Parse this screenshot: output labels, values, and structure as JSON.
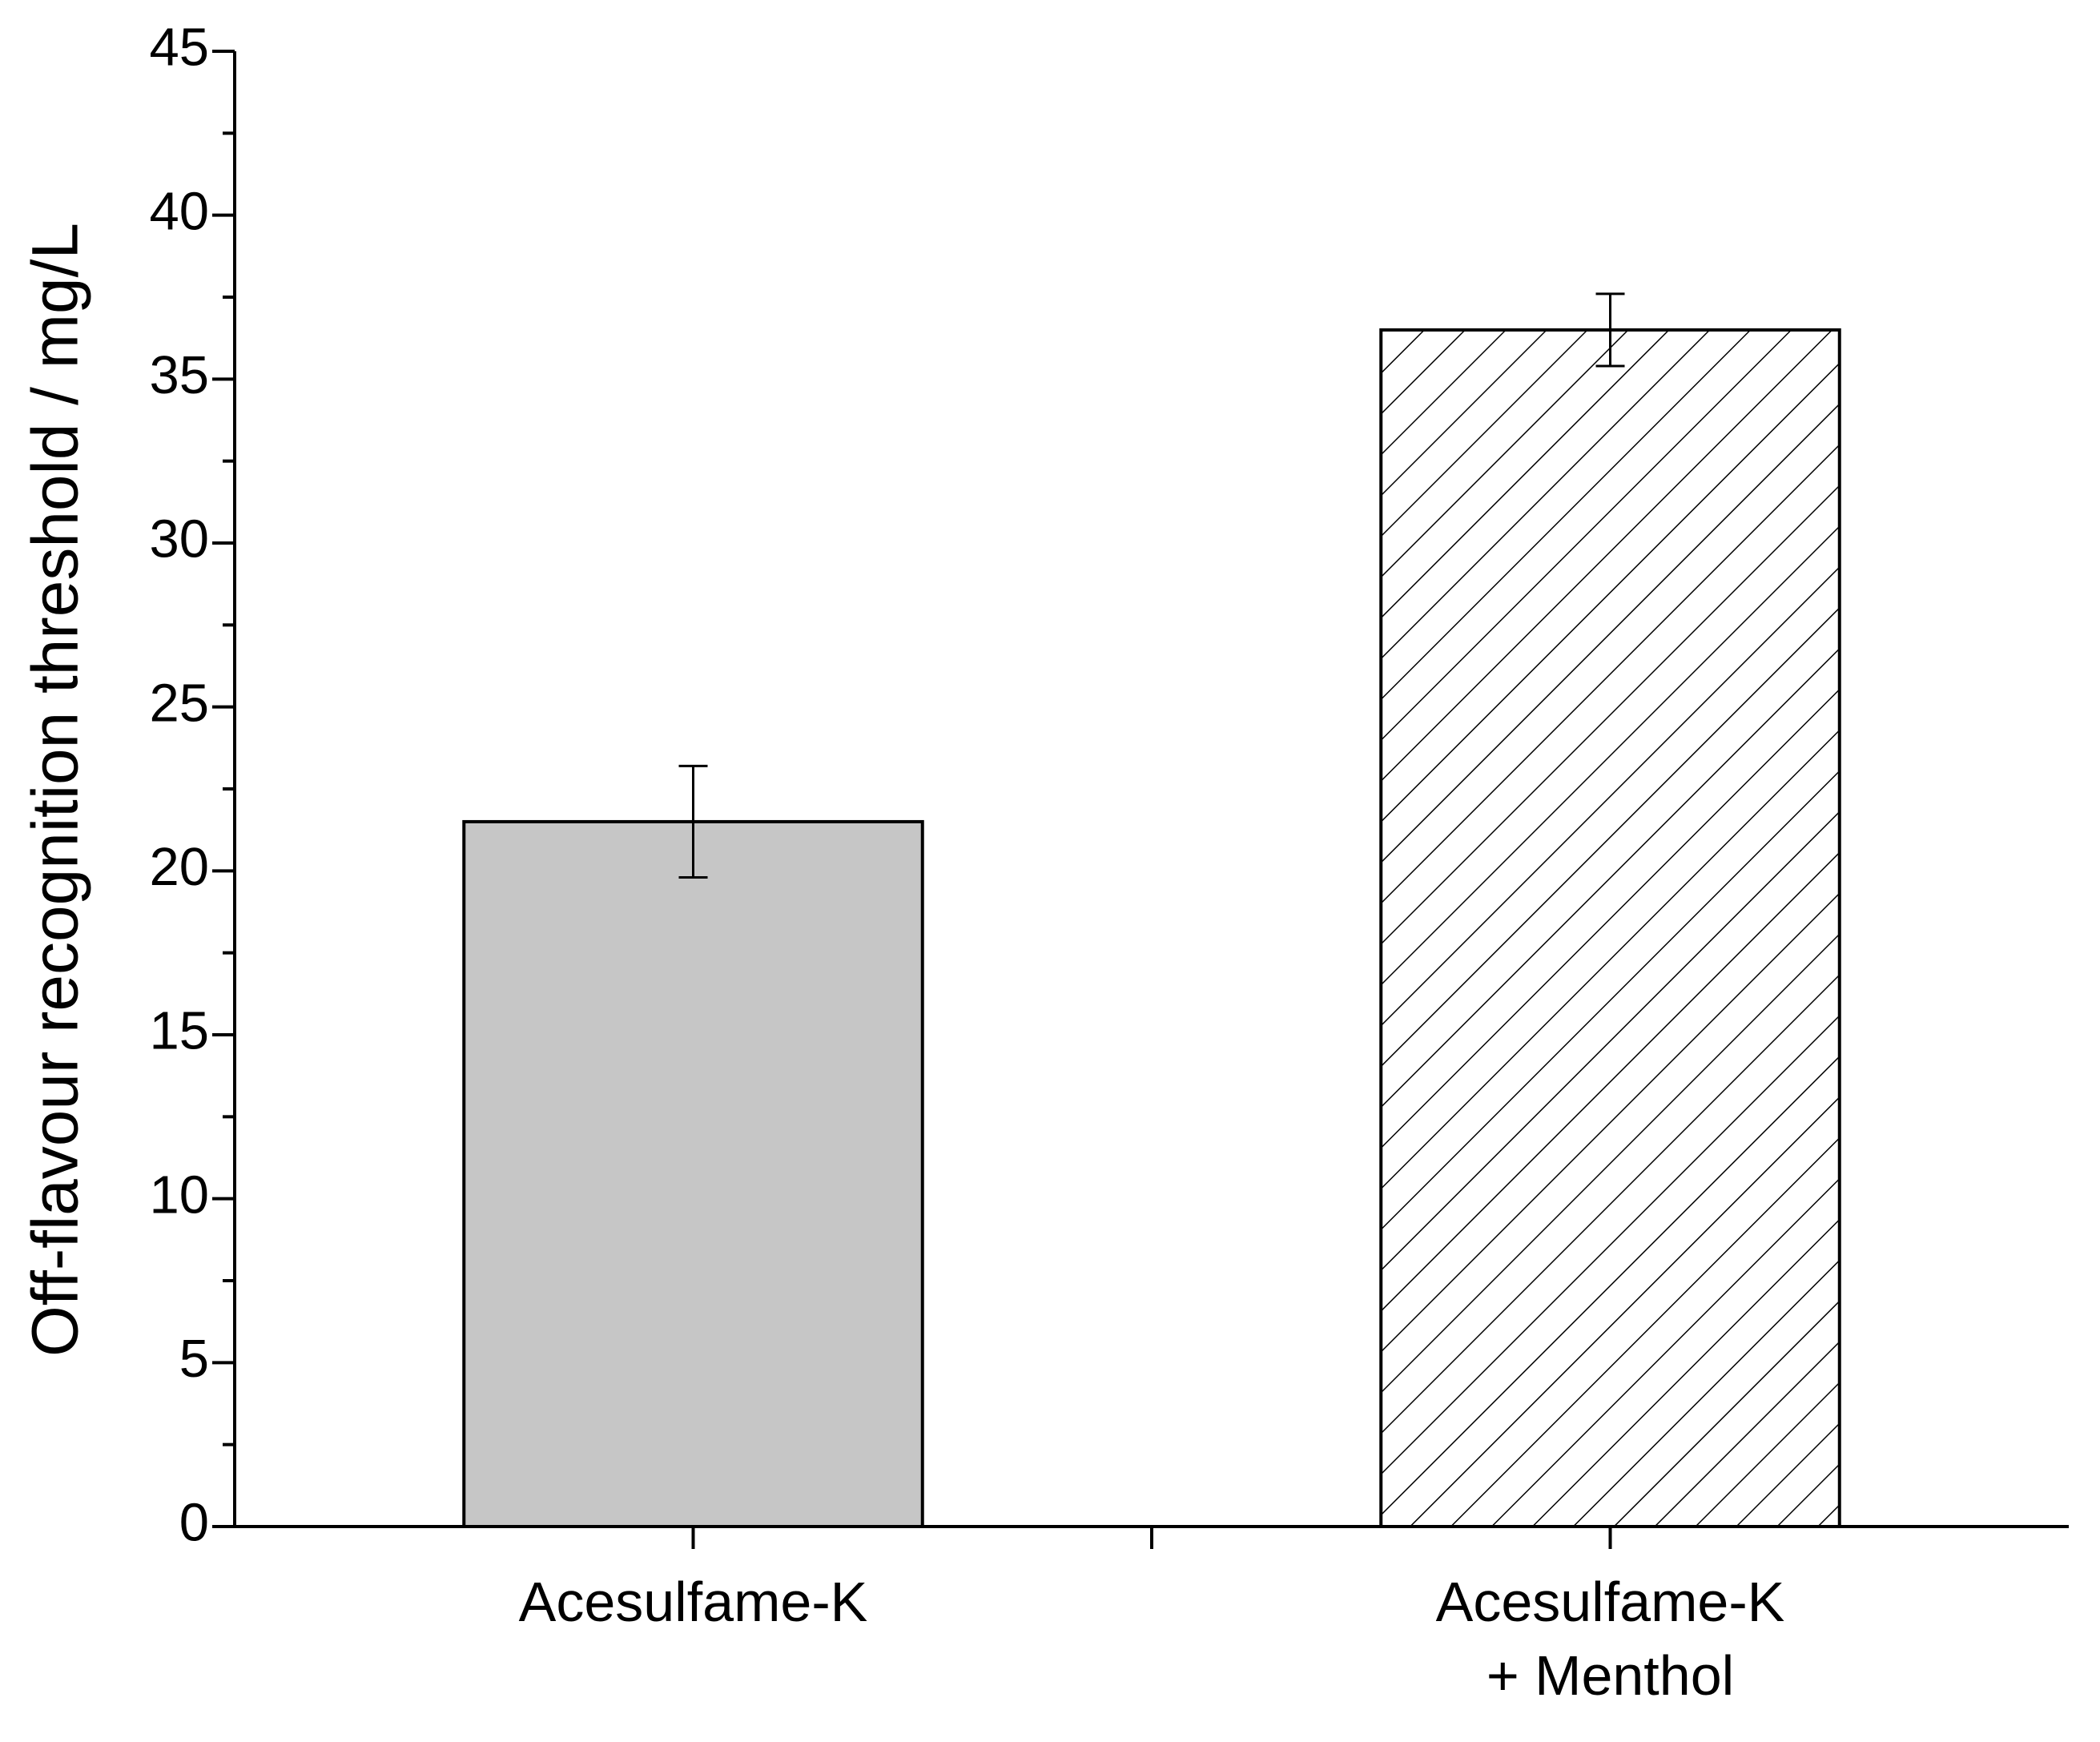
{
  "chart_data": {
    "type": "bar",
    "y_label": "Off-flavour recognition threshold / mg/L",
    "categories": [
      "Acesulfame-K",
      "Acesulfame-K\n+ Menthol"
    ],
    "values": [
      21.5,
      36.5
    ],
    "errors": [
      1.7,
      1.1
    ],
    "colors": [
      "#c6c6c6",
      "#ffffff"
    ],
    "hatch": [
      false,
      true
    ],
    "ylim": [
      0,
      45
    ],
    "yticks": [
      0,
      5,
      10,
      15,
      20,
      25,
      30,
      35,
      40,
      45
    ],
    "yminor": [
      2.5,
      7.5,
      12.5,
      17.5,
      22.5,
      27.5,
      32.5,
      37.5,
      42.5
    ],
    "grid": false
  }
}
